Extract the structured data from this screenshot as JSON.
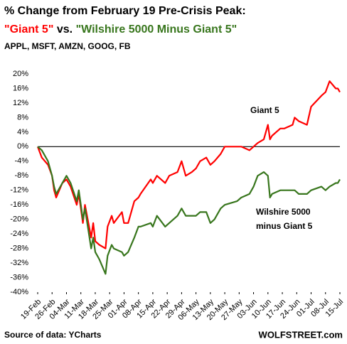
{
  "chart_data": {
    "type": "line",
    "title": "% Change from February 19 Pre-Crisis Peak:",
    "subtitle_parts": [
      "\"Giant 5\"",
      "vs.",
      "\"Wilshire 5000 Minus Giant 5\""
    ],
    "subtitle_colors": [
      "#ff0000",
      "#000000",
      "#38761d"
    ],
    "note": "APPL, MSFT, AMZN, GOOG, FB",
    "source": "Source of data: YCharts",
    "brand": "WOLFSTREET.com",
    "annotations": [
      {
        "text": "Giant 5",
        "color": "#ff0000"
      },
      {
        "text": "Wilshire 5000",
        "color": "#38761d"
      },
      {
        "text": "minus Giant 5",
        "color": "#38761d"
      }
    ],
    "x": [
      "19-Feb",
      "21-Feb",
      "24-Feb",
      "26-Feb",
      "27-Feb",
      "28-Feb",
      "02-Mar",
      "04-Mar",
      "06-Mar",
      "09-Mar",
      "10-Mar",
      "12-Mar",
      "13-Mar",
      "16-Mar",
      "17-Mar",
      "18-Mar",
      "20-Mar",
      "23-Mar",
      "24-Mar",
      "26-Mar",
      "27-Mar",
      "31-Mar",
      "01-Apr",
      "03-Apr",
      "06-Apr",
      "08-Apr",
      "09-Apr",
      "14-Apr",
      "15-Apr",
      "17-Apr",
      "21-Apr",
      "23-Apr",
      "27-Apr",
      "29-Apr",
      "01-May",
      "04-May",
      "06-May",
      "08-May",
      "11-May",
      "13-May",
      "15-May",
      "18-May",
      "20-May",
      "26-May",
      "28-May",
      "01-Jun",
      "03-Jun",
      "05-Jun",
      "08-Jun",
      "10-Jun",
      "11-Jun",
      "12-Jun",
      "16-Jun",
      "18-Jun",
      "22-Jun",
      "23-Jun",
      "25-Jun",
      "29-Jun",
      "01-Jul",
      "06-Jul",
      "08-Jul",
      "10-Jul",
      "13-Jul",
      "14-Jul",
      "15-Jul"
    ],
    "series": [
      {
        "name": "Giant 5",
        "color": "#ff0000",
        "values": [
          0,
          -3,
          -5,
          -8,
          -12,
          -14,
          -10,
          -9,
          -11,
          -16,
          -13,
          -21,
          -16,
          -25,
          -21,
          -26,
          -27,
          -28,
          -22,
          -19,
          -21,
          -18,
          -21,
          -21,
          -15,
          -14,
          -13,
          -9,
          -10,
          -8,
          -10,
          -8,
          -7,
          -4,
          -8,
          -7,
          -6,
          -4,
          -3,
          -5,
          -4,
          -2,
          0,
          0,
          0,
          -1,
          0,
          1,
          2,
          6,
          2,
          3,
          5,
          5,
          6,
          8,
          7,
          6,
          11,
          14,
          15,
          18,
          16,
          16,
          15
        ]
      },
      {
        "name": "Wilshire 5000 Minus Giant 5",
        "color": "#38761d",
        "values": [
          0,
          -1,
          -4,
          -8,
          -11,
          -13,
          -10,
          -8,
          -10,
          -15,
          -12,
          -20,
          -17,
          -28,
          -25,
          -29,
          -31,
          -35,
          -30,
          -27,
          -28,
          -29,
          -30,
          -29,
          -25,
          -22,
          -22,
          -21,
          -22,
          -19,
          -22,
          -21,
          -19,
          -17,
          -19,
          -19,
          -19,
          -18,
          -18,
          -21,
          -20,
          -17,
          -16,
          -15,
          -14,
          -13,
          -11,
          -8,
          -7,
          -8,
          -14,
          -13,
          -12,
          -12,
          -12,
          -12,
          -13,
          -13,
          -12,
          -11,
          -12,
          -11,
          -10,
          -10,
          -9
        ]
      }
    ],
    "xlim": [
      "19-Feb",
      "15-Jul"
    ],
    "xticks": [
      "19-Feb",
      "26-Feb",
      "04-Mar",
      "11-Mar",
      "18-Mar",
      "25-Mar",
      "01-Apr",
      "08-Apr",
      "15-Apr",
      "22-Apr",
      "29-Apr",
      "06-May",
      "13-May",
      "20-May",
      "27-May",
      "03-Jun",
      "10-Jun",
      "17-Jun",
      "24-Jun",
      "01-Jul",
      "08-Jul",
      "15-Jul"
    ],
    "ylim": [
      -40,
      20
    ],
    "yticks": [
      {
        "value": 20,
        "label": "20%"
      },
      {
        "value": 16,
        "label": "16%"
      },
      {
        "value": 12,
        "label": "12%"
      },
      {
        "value": 8,
        "label": "8%"
      },
      {
        "value": 4,
        "label": "4%"
      },
      {
        "value": 0,
        "label": "0%"
      },
      {
        "value": -4,
        "label": "-4%"
      },
      {
        "value": -8,
        "label": "-8%"
      },
      {
        "value": -12,
        "label": "-12%"
      },
      {
        "value": -16,
        "label": "-16%"
      },
      {
        "value": -20,
        "label": "-20%"
      },
      {
        "value": -24,
        "label": "-24%"
      },
      {
        "value": -28,
        "label": "-28%"
      },
      {
        "value": -32,
        "label": "-32%"
      },
      {
        "value": -36,
        "label": "-36%"
      },
      {
        "value": -40,
        "label": "-40%"
      }
    ],
    "zero_line": true,
    "grid": false
  }
}
